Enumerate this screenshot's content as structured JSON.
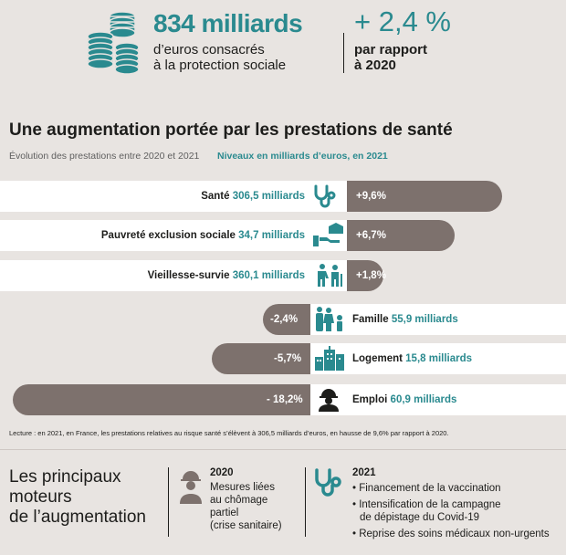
{
  "header": {
    "amount": "834 milliards",
    "amount_sub_1": "d’euros consacrés",
    "amount_sub_2": "à la protection sociale",
    "change": "+ 2,4 %",
    "change_sub_1": "par rapport",
    "change_sub_2": "à 2020"
  },
  "section": {
    "title": "Une augmentation portée par les prestations de santé",
    "subtitle_left": "Évolution des prestations entre 2020 et 2021",
    "subtitle_right": "Niveaux en milliards d’euros, en 2021"
  },
  "rows": [
    {
      "label": "Santé",
      "value": "306,5 milliards",
      "pct": "+9,6%",
      "change": 9.6
    },
    {
      "label": "Pauvreté exclusion sociale",
      "value": "34,7 milliards",
      "pct": "+6,7%",
      "change": 6.7
    },
    {
      "label": "Vieillesse-survie",
      "value": "360,1 milliards",
      "pct": "+1,8%",
      "change": 1.8
    },
    {
      "label": "Famille",
      "value": "55,9 milliards",
      "pct": "-2,4%",
      "change": -2.4
    },
    {
      "label": "Logement",
      "value": "15,8 milliards",
      "pct": "-5,7%",
      "change": -5.7
    },
    {
      "label": "Emploi",
      "value": "60,9 milliards",
      "pct": "- 18,2%",
      "change": -18.2
    }
  ],
  "reading_note": "Lecture : en 2021, en France, les prestations relatives au risque santé s’élèvent à 306,5 milliards d’euros, en hausse de 9,6% par rapport à 2020.",
  "drivers": {
    "title_1": "Les principaux",
    "title_2": "moteurs",
    "title_3": "de l’augmentation",
    "col2020": {
      "year": "2020",
      "text_1": "Mesures liées",
      "text_2": "au chômage",
      "text_3": "partiel",
      "text_4": "(crise sanitaire)"
    },
    "col2021": {
      "year": "2021",
      "bullet_1": "• Financement de la vaccination",
      "bullet_2a": "• Intensification de la campagne",
      "bullet_2b": "de dépistage du Covid-19",
      "bullet_3": "• Reprise des soins médicaux non-urgents"
    }
  },
  "colors": {
    "teal": "#2a8a8f",
    "bar": "#7d716d",
    "background": "#e8e4e1"
  },
  "icons": [
    "coins-icon",
    "stethoscope-icon",
    "hand-house-icon",
    "elderly-couple-icon",
    "family-icon",
    "buildings-icon",
    "worker-icon"
  ]
}
